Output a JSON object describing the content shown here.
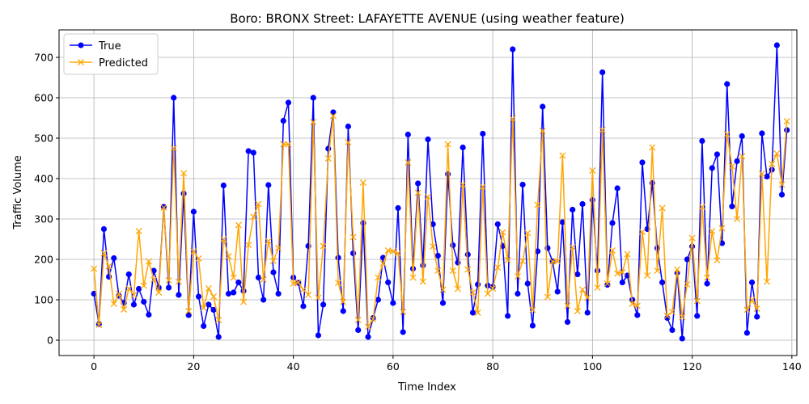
{
  "chart_data": {
    "type": "line",
    "title": "Boro: BRONX Street: LAFAYETTE AVENUE (using weather feature)",
    "xlabel": "Time Index",
    "ylabel": "Traffic Volume",
    "xlim": [
      -7,
      141
    ],
    "ylim": [
      -38,
      768
    ],
    "xticks": [
      0,
      20,
      40,
      60,
      80,
      100,
      120,
      140
    ],
    "yticks": [
      0,
      100,
      200,
      300,
      400,
      500,
      600,
      700
    ],
    "grid": true,
    "legend_position": "upper-left",
    "series": [
      {
        "name": "True",
        "color": "#0000ff",
        "marker": "circle",
        "values": [
          115,
          40,
          275,
          157,
          203,
          110,
          92,
          163,
          88,
          127,
          95,
          63,
          172,
          130,
          330,
          130,
          600,
          112,
          363,
          62,
          318,
          108,
          35,
          88,
          75,
          8,
          383,
          115,
          118,
          143,
          122,
          468,
          464,
          155,
          100,
          384,
          168,
          115,
          543,
          588,
          155,
          142,
          84,
          233,
          600,
          12,
          88,
          474,
          564,
          204,
          72,
          529,
          215,
          25,
          290,
          8,
          55,
          100,
          204,
          143,
          92,
          327,
          20,
          509,
          177,
          388,
          185,
          497,
          287,
          209,
          92,
          411,
          235,
          192,
          477,
          212,
          68,
          138,
          511,
          135,
          132,
          287,
          233,
          60,
          720,
          115,
          385,
          140,
          36,
          220,
          578,
          228,
          195,
          120,
          292,
          45,
          323,
          163,
          337,
          68,
          347,
          172,
          663,
          137,
          290,
          376,
          143,
          160,
          100,
          62,
          440,
          275,
          389,
          228,
          143,
          55,
          25,
          167,
          4,
          200,
          232,
          60,
          493,
          140,
          426,
          460,
          240,
          634,
          331,
          443,
          505,
          18,
          143,
          58,
          512,
          405,
          422,
          730,
          360,
          520
        ]
      },
      {
        "name": "Predicted",
        "color": "#ffa500",
        "marker": "x",
        "values": [
          177,
          38,
          215,
          183,
          90,
          115,
          76,
          128,
          112,
          270,
          135,
          195,
          150,
          118,
          328,
          148,
          475,
          145,
          413,
          72,
          220,
          202,
          80,
          128,
          108,
          50,
          250,
          208,
          155,
          285,
          95,
          236,
          305,
          337,
          150,
          245,
          196,
          228,
          485,
          485,
          140,
          143,
          125,
          112,
          540,
          105,
          233,
          450,
          555,
          142,
          95,
          490,
          255,
          50,
          390,
          33,
          52,
          155,
          190,
          222,
          220,
          215,
          70,
          440,
          155,
          365,
          145,
          355,
          232,
          172,
          125,
          485,
          172,
          127,
          385,
          175,
          118,
          68,
          380,
          115,
          128,
          180,
          267,
          198,
          548,
          158,
          196,
          265,
          75,
          335,
          518,
          107,
          195,
          195,
          457,
          85,
          230,
          72,
          125,
          105,
          420,
          130,
          520,
          140,
          222,
          165,
          168,
          213,
          90,
          85,
          268,
          160,
          477,
          172,
          327,
          60,
          70,
          175,
          57,
          138,
          253,
          97,
          330,
          155,
          270,
          198,
          277,
          510,
          430,
          300,
          455,
          75,
          100,
          78,
          412,
          145,
          436,
          462,
          385,
          542
        ]
      }
    ]
  }
}
